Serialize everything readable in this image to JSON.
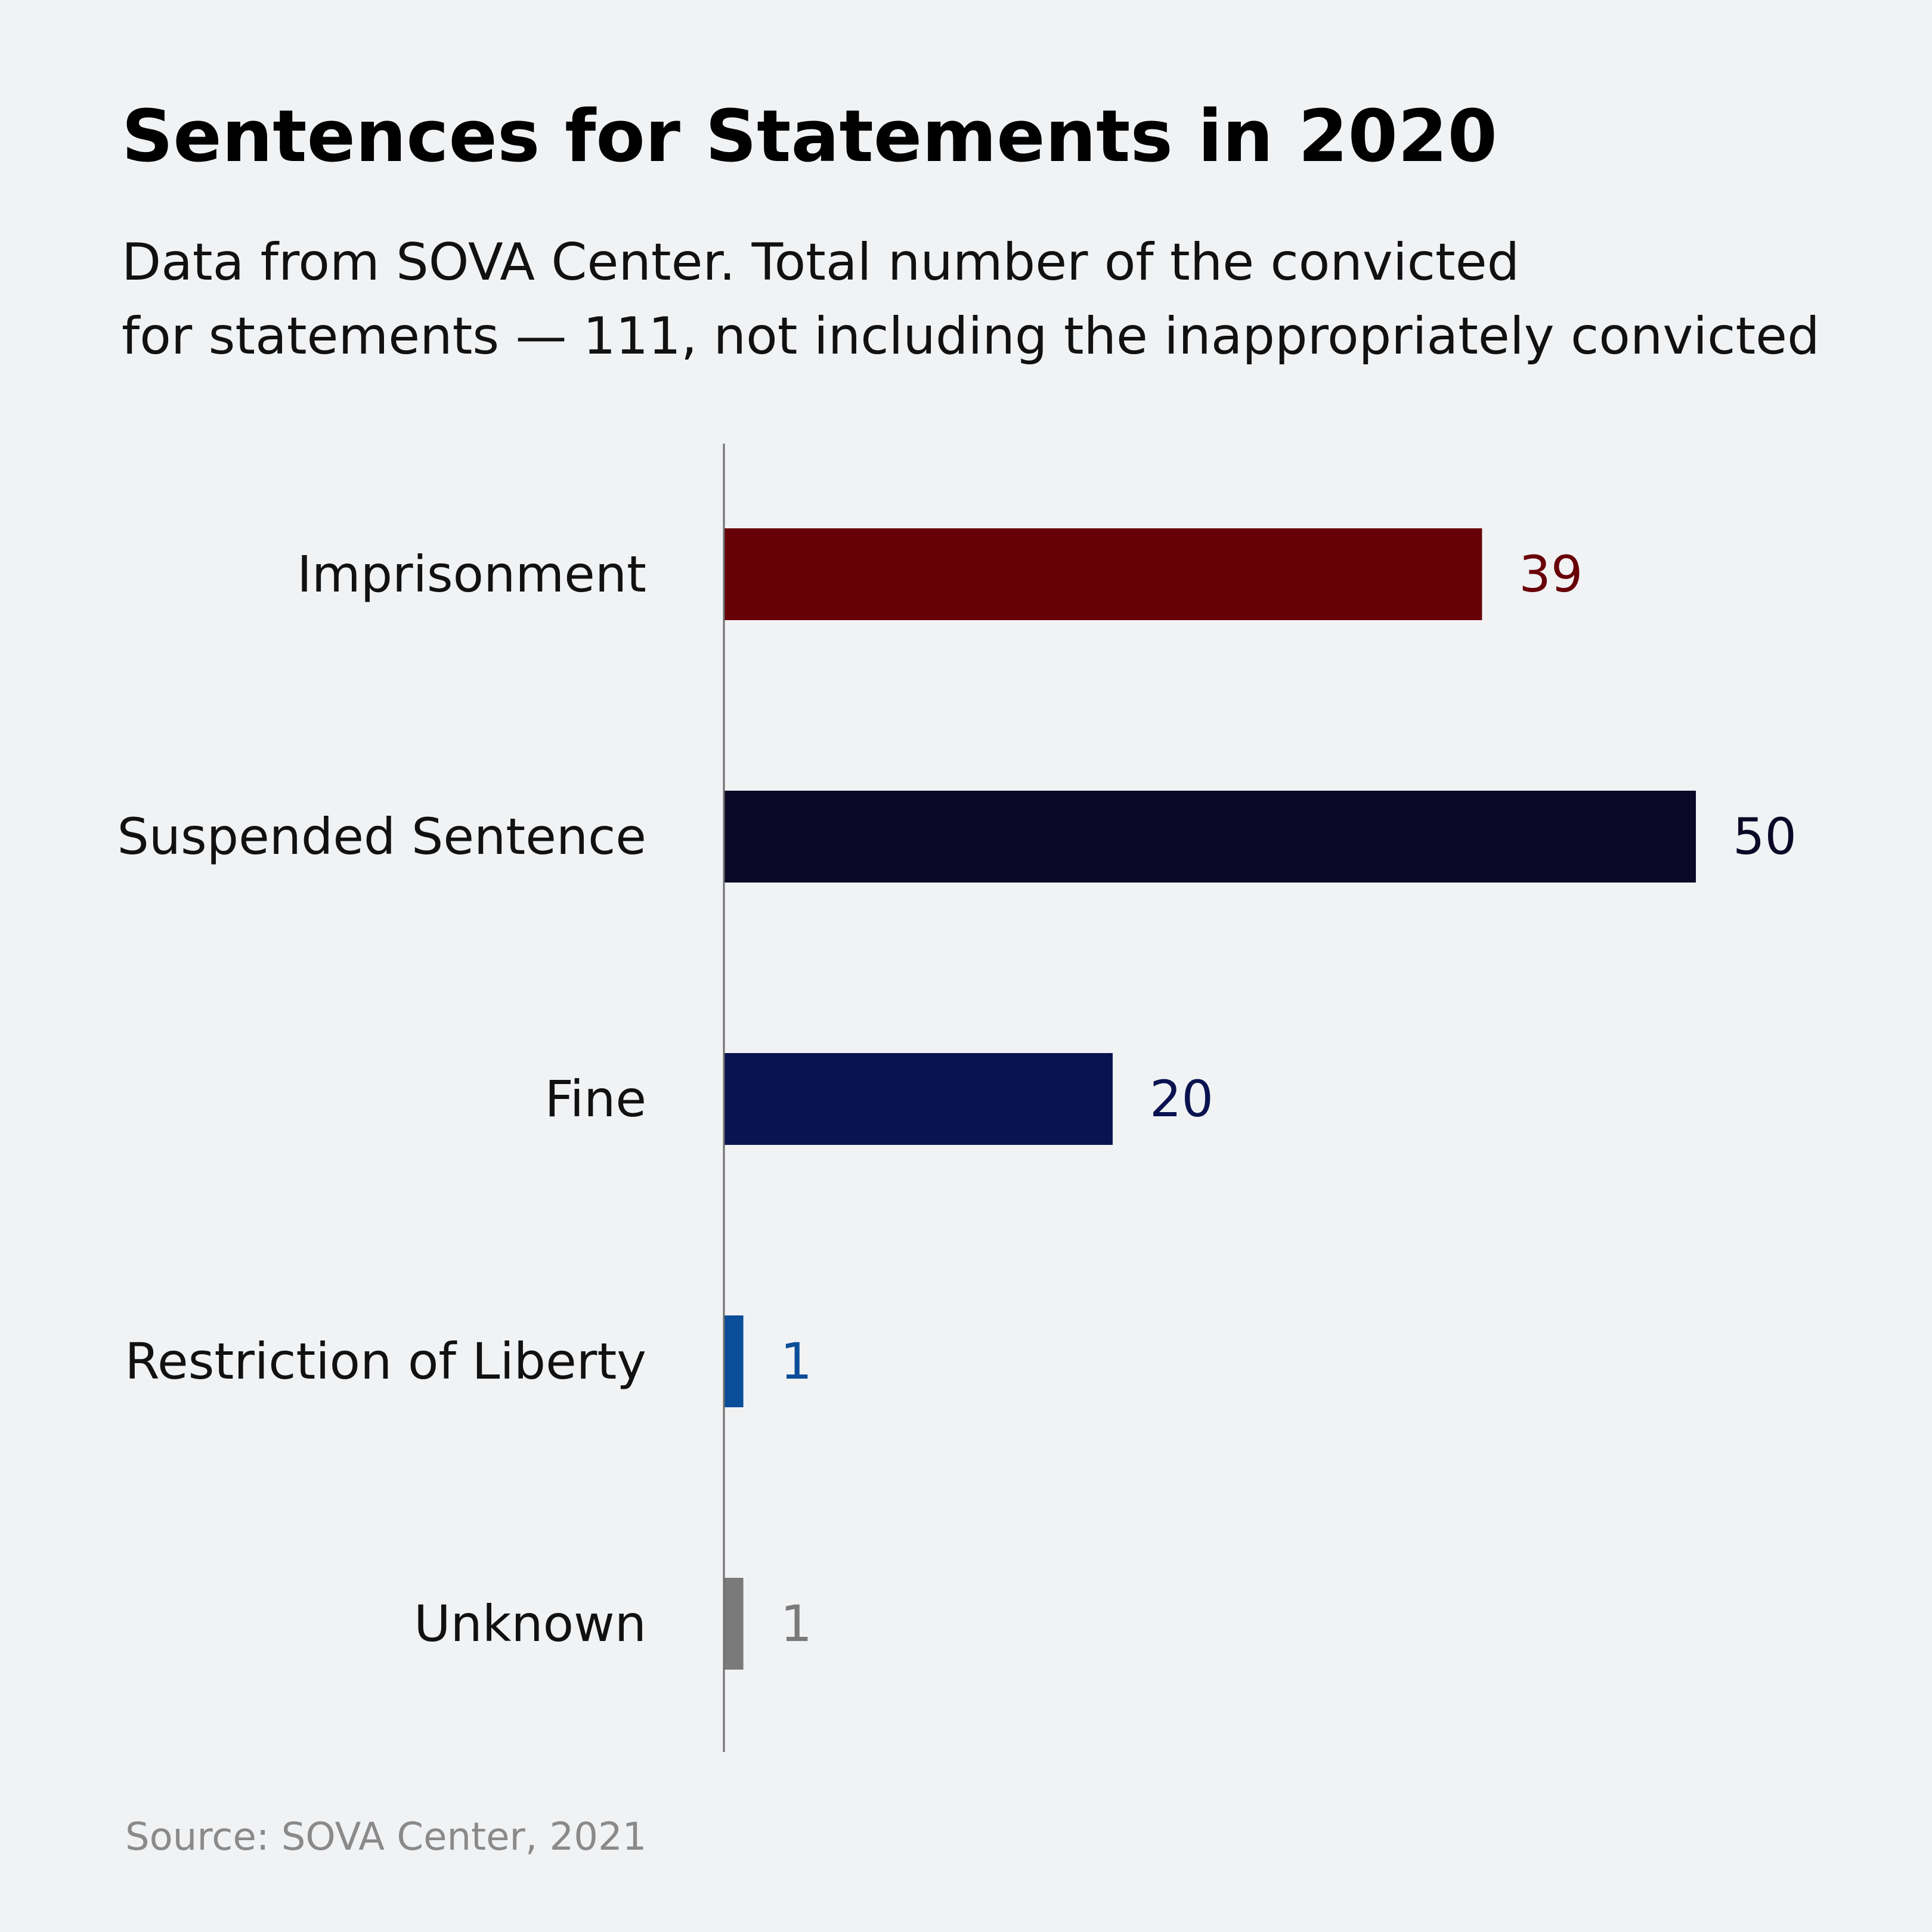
{
  "chart_data": {
    "type": "bar",
    "orientation": "horizontal",
    "title": "Sentences for Statements in 2020",
    "subtitle_lines": [
      "Data from SOVA Center. Total number of the convicted",
      "for statements — 111, not including the inappropriately convicted"
    ],
    "categories": [
      "Imprisonment",
      "Suspended Sentence",
      "Fine",
      "Restriction of Liberty",
      "Unknown"
    ],
    "values": [
      39,
      50,
      20,
      1,
      1
    ],
    "colors": [
      "#680008",
      "#0b0726",
      "#0a1350",
      "#0a4d99",
      "#7a7a7a"
    ],
    "xlim": [
      0,
      50
    ],
    "grid": false,
    "legend": "none",
    "source": "Source: SOVA Center, 2021"
  }
}
